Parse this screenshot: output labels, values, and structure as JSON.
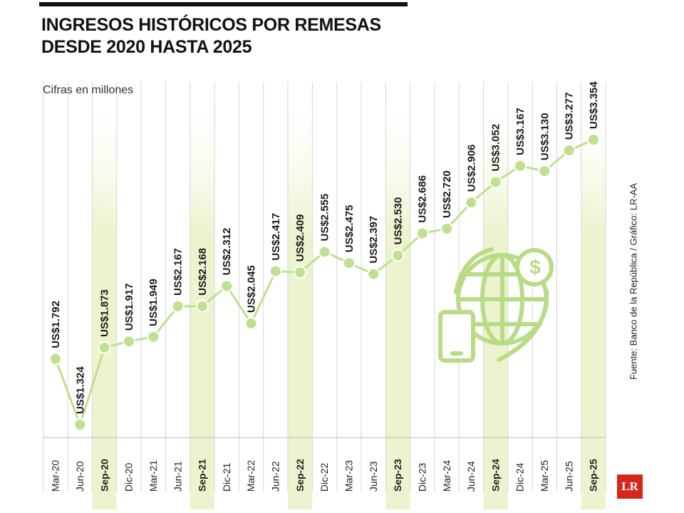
{
  "chart_data": {
    "type": "line",
    "title": "INGRESOS HISTÓRICOS POR REMESAS DESDE 2020 HASTA 2025",
    "subtitle": "Cifras en millones",
    "source": "Fuente: Banco de la República / Gráfico: LR-AA",
    "logo": "LR",
    "color": "#bfe08f",
    "categories": [
      "Mar-20",
      "Jun-20",
      "Sep-20",
      "Dic-20",
      "Mar-21",
      "Jun-21",
      "Sep-21",
      "Dic-21",
      "Mar-22",
      "Jun-22",
      "Sep-22",
      "Dic-22",
      "Mar-23",
      "Jun-23",
      "Sep-23",
      "Dic-23",
      "Mar-24",
      "Jun-24",
      "Sep-24",
      "Dic-24",
      "Mar-25",
      "Jun-25",
      "Sep-25"
    ],
    "values": [
      1792,
      1324,
      1873,
      1917,
      1949,
      2167,
      2168,
      2312,
      2045,
      2417,
      2409,
      2555,
      2475,
      2397,
      2530,
      2686,
      2720,
      2906,
      3052,
      3167,
      3130,
      3277,
      3354
    ],
    "value_labels": [
      "US$1.792",
      "US$1.324",
      "US$1.873",
      "US$1.917",
      "US$1.949",
      "US$2.167",
      "US$2.168",
      "US$2.312",
      "US$2.045",
      "US$2.417",
      "US$2.409",
      "US$2.555",
      "US$2.475",
      "US$2.397",
      "US$2.530",
      "US$2.686",
      "US$2.720",
      "US$2.906",
      "US$3.052",
      "US$3.167",
      "US$3.130",
      "US$3.277",
      "US$3.354"
    ]
  }
}
